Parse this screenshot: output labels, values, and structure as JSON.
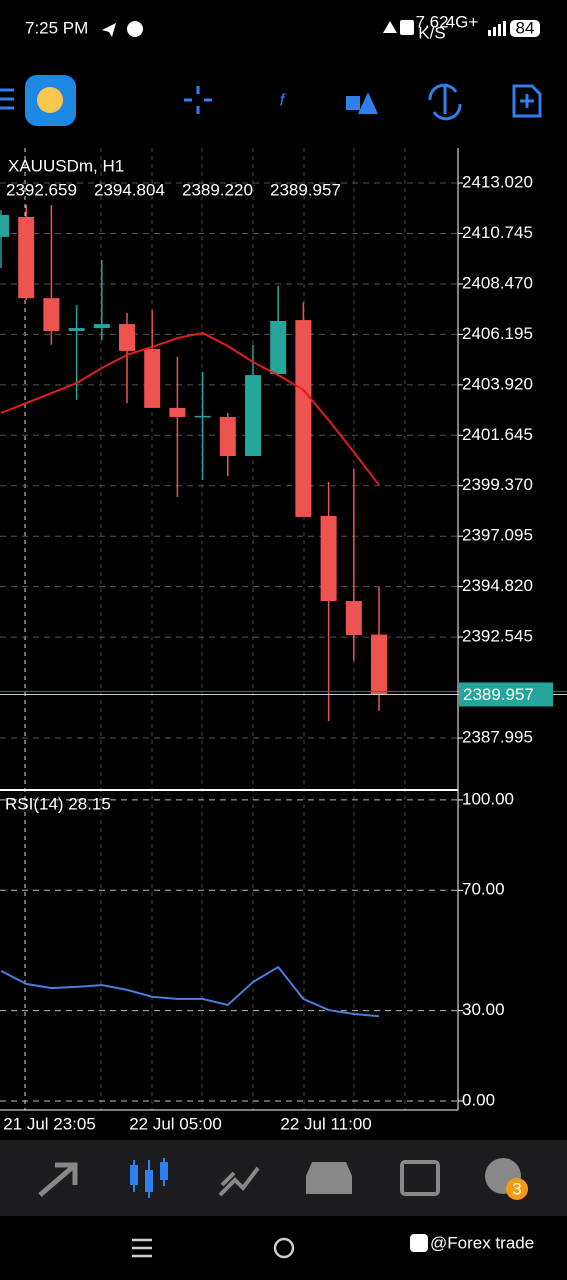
{
  "status_bar": {
    "time": "7:25 PM",
    "speed": "7.62",
    "speed_unit": "K/S",
    "network": "4G+",
    "battery": "84"
  },
  "chart_data": [
    {
      "type": "candlestick",
      "title": "XAUUSDm, H1",
      "ohlc_header": [
        "2392.659",
        "2394.804",
        "2389.220",
        "2389.957"
      ],
      "categories": [
        null,
        "21 Jul 23:05",
        null,
        null,
        null,
        null,
        "22 Jul 05:00",
        null,
        null,
        null,
        null,
        null,
        "22 Jul 11:00",
        null,
        null,
        null
      ],
      "open": [
        2410.59,
        2411.49,
        2407.83,
        2406.35,
        2406.48,
        2406.66,
        2405.54,
        2402.88,
        2402.52,
        2402.47,
        2400.71,
        2404.41,
        2406.84,
        2398.01,
        2394.17,
        2392.659
      ],
      "high": [
        2411.8,
        2412.03,
        2412.03,
        2407.52,
        2409.55,
        2407.16,
        2407.29,
        2405.18,
        2404.5,
        2402.65,
        2405.72,
        2408.38,
        2407.65,
        2399.54,
        2400.13,
        2394.804
      ],
      "low": [
        2409.19,
        2407.74,
        2405.72,
        2403.24,
        2405.94,
        2403.1,
        2402.88,
        2398.86,
        2399.63,
        2399.81,
        2400.71,
        2404.32,
        2397.96,
        2388.76,
        2391.47,
        2389.22
      ],
      "close": [
        2411.58,
        2407.83,
        2406.35,
        2406.48,
        2406.66,
        2405.45,
        2402.88,
        2402.47,
        2402.52,
        2400.71,
        2404.36,
        2406.8,
        2397.96,
        2394.17,
        2392.64,
        2389.957
      ],
      "up_color": "#26a69a",
      "down_color": "#ef5350",
      "series": [
        {
          "color": "#e01e1e",
          "values": [
            2402.65,
            2403.1,
            2403.55,
            2404.0,
            2404.68,
            2405.27,
            2405.63,
            2406.03,
            2406.26,
            2405.67,
            2404.95,
            2404.36,
            2403.69,
            2402.33,
            2400.89,
            2399.4
          ]
        }
      ],
      "current_price": 2389.957,
      "ylim": [
        2385.65,
        2414.6
      ],
      "yticks": [
        {
          "value": 2413.02,
          "label": "2413.020"
        },
        {
          "value": 2410.745,
          "label": "2410.745"
        },
        {
          "value": 2408.47,
          "label": "2408.470"
        },
        {
          "value": 2406.195,
          "label": "2406.195"
        },
        {
          "value": 2403.92,
          "label": "2403.920"
        },
        {
          "value": 2401.645,
          "label": "2401.645"
        },
        {
          "value": 2399.37,
          "label": "2399.370"
        },
        {
          "value": 2397.095,
          "label": "2397.095"
        },
        {
          "value": 2394.82,
          "label": "2394.820"
        },
        {
          "value": 2392.545,
          "label": "2392.545"
        },
        {
          "value": 2387.995,
          "label": "2387.995"
        }
      ],
      "grid": true
    },
    {
      "type": "line",
      "title": "RSI(14) 28.15",
      "series": [
        {
          "color": "#4a7fe0",
          "values": [
            43.2,
            38.9,
            37.5,
            37.9,
            38.5,
            36.9,
            34.6,
            33.9,
            33.9,
            31.9,
            39.5,
            44.5,
            33.9,
            30.2,
            28.9,
            28.15
          ]
        }
      ],
      "ylim": [
        -3,
        103.3
      ],
      "yticks": [
        {
          "value": 100,
          "label": "100.00"
        },
        {
          "value": 70,
          "label": "70.00"
        },
        {
          "value": 30,
          "label": "30.00"
        },
        {
          "value": 0,
          "label": "0.00"
        }
      ]
    }
  ],
  "nav_badge": "3",
  "watermark": "@Forex trade"
}
